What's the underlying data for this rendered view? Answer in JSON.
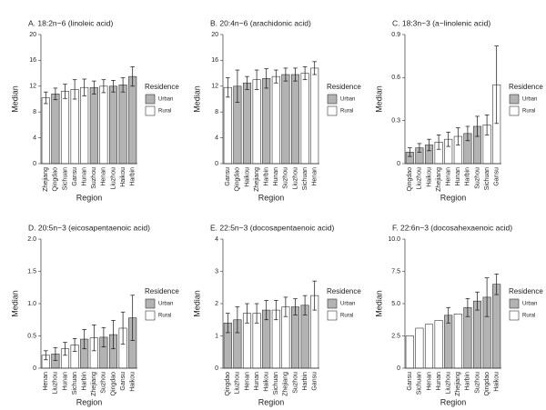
{
  "chart_data": [
    {
      "type": "bar",
      "title": "A. 18:2n−6 (linoleic acid)",
      "x_label": "Region",
      "y_label": "Median",
      "legend_title": "Residence",
      "categories": [
        "Zhejiang",
        "Qingdao",
        "Sichuan",
        "Gansu",
        "Hunan",
        "Suzhou",
        "Henan",
        "Liuzhou",
        "Haikou",
        "Harbin"
      ],
      "series": [
        {
          "name": "Urban",
          "color": "#b3b3b3",
          "values": [
            null,
            10.8,
            null,
            null,
            null,
            11.8,
            null,
            12.0,
            12.2,
            13.5
          ],
          "errors": [
            null,
            0.9,
            null,
            null,
            null,
            1.0,
            null,
            0.9,
            1.1,
            1.5
          ]
        },
        {
          "name": "Rural",
          "color": "#ffffff",
          "values": [
            10.2,
            null,
            11.2,
            11.5,
            11.8,
            null,
            12.0,
            null,
            null,
            null
          ],
          "errors": [
            0.9,
            null,
            1.1,
            1.5,
            1.3,
            null,
            1.0,
            null,
            null,
            null
          ]
        }
      ],
      "ylim": [
        0,
        20
      ],
      "yticks": [
        0,
        4,
        8,
        12,
        16,
        20
      ]
    },
    {
      "type": "bar",
      "title": "B. 20:4n−6 (arachidonic acid)",
      "x_label": "Region",
      "y_label": "Median",
      "legend_title": "Residence",
      "categories": [
        "Gansu",
        "Qingdao",
        "Haikou",
        "Zhejiang",
        "Harbin",
        "Hunan",
        "Suzhou",
        "Liuzhou",
        "Sichuan",
        "Henan"
      ],
      "series": [
        {
          "name": "Urban",
          "color": "#b3b3b3",
          "values": [
            null,
            12.0,
            12.5,
            null,
            13.2,
            null,
            13.8,
            13.8,
            null,
            null
          ],
          "errors": [
            null,
            2.5,
            1.0,
            null,
            1.5,
            null,
            1.0,
            1.0,
            null,
            null
          ]
        },
        {
          "name": "Rural",
          "color": "#ffffff",
          "values": [
            11.8,
            null,
            null,
            13.0,
            null,
            13.5,
            null,
            null,
            14.0,
            14.8
          ],
          "errors": [
            1.5,
            null,
            null,
            1.5,
            null,
            1.0,
            null,
            null,
            1.0,
            1.0
          ]
        }
      ],
      "ylim": [
        0,
        20
      ],
      "yticks": [
        0,
        4,
        8,
        12,
        16,
        20
      ]
    },
    {
      "type": "bar",
      "title": "C. 18:3n−3 (a−linolenic acid)",
      "x_label": "Region",
      "y_label": "Median",
      "legend_title": "Residence",
      "categories": [
        "Qingdao",
        "Liuzhou",
        "Haikou",
        "Zhejiang",
        "Henan",
        "Hunan",
        "Harbin",
        "Suzhou",
        "Sichuan",
        "Gansu"
      ],
      "series": [
        {
          "name": "Urban",
          "color": "#b3b3b3",
          "values": [
            0.08,
            0.11,
            0.13,
            null,
            null,
            null,
            0.21,
            0.26,
            null,
            null
          ],
          "errors": [
            0.03,
            0.03,
            0.04,
            null,
            null,
            null,
            0.05,
            0.07,
            null,
            null
          ]
        },
        {
          "name": "Rural",
          "color": "#ffffff",
          "values": [
            null,
            null,
            null,
            0.15,
            0.17,
            0.19,
            null,
            null,
            0.27,
            0.55
          ],
          "errors": [
            null,
            null,
            null,
            0.05,
            0.05,
            0.06,
            null,
            null,
            0.07,
            0.27
          ]
        }
      ],
      "ylim": [
        0,
        0.9
      ],
      "yticks": [
        0,
        0.3,
        0.6,
        0.9
      ]
    },
    {
      "type": "bar",
      "title": "D. 20:5n−3 (eicosapentaenoic acid)",
      "x_label": "Region",
      "y_label": "Median",
      "legend_title": "Residence",
      "categories": [
        "Henan",
        "Liuzhou",
        "Hunan",
        "Sichuan",
        "Harbin",
        "Zhejiang",
        "Suzhou",
        "Qingdao",
        "Gansu",
        "Haikou"
      ],
      "series": [
        {
          "name": "Urban",
          "color": "#b3b3b3",
          "values": [
            null,
            0.22,
            null,
            null,
            0.45,
            null,
            0.48,
            0.52,
            null,
            0.78
          ],
          "errors": [
            null,
            0.1,
            null,
            null,
            0.15,
            null,
            0.15,
            0.22,
            null,
            0.35
          ]
        },
        {
          "name": "Rural",
          "color": "#ffffff",
          "values": [
            0.2,
            null,
            0.3,
            0.36,
            null,
            0.47,
            null,
            null,
            0.62,
            null
          ],
          "errors": [
            0.07,
            null,
            0.1,
            0.1,
            null,
            0.2,
            null,
            null,
            0.25,
            null
          ]
        }
      ],
      "ylim": [
        0,
        2
      ],
      "yticks": [
        0,
        0.5,
        {
          "value": 1,
          "label": "1.0"
        },
        1.5,
        {
          "value": 2,
          "label": "2.0"
        }
      ]
    },
    {
      "type": "bar",
      "title": "E. 22:5n−3 (docosapentaenoic acid)",
      "x_label": "Region",
      "y_label": "Median",
      "legend_title": "Residence",
      "categories": [
        "Qingdao",
        "Liuzhou",
        "Henan",
        "Hunan",
        "Haikou",
        "Sichuan",
        "Zhejiang",
        "Suzhou",
        "Harbin",
        "Gansu"
      ],
      "series": [
        {
          "name": "Urban",
          "color": "#b3b3b3",
          "values": [
            1.4,
            1.5,
            null,
            null,
            1.8,
            null,
            null,
            1.9,
            1.95,
            null
          ],
          "errors": [
            0.3,
            0.4,
            null,
            null,
            0.3,
            null,
            null,
            0.25,
            0.3,
            null
          ]
        },
        {
          "name": "Rural",
          "color": "#ffffff",
          "values": [
            null,
            null,
            1.7,
            1.7,
            null,
            1.8,
            1.9,
            null,
            null,
            2.25
          ],
          "errors": [
            null,
            null,
            0.3,
            0.3,
            null,
            0.3,
            0.3,
            null,
            null,
            0.45
          ]
        }
      ],
      "ylim": [
        0,
        4
      ],
      "yticks": [
        0,
        1,
        2,
        3,
        4
      ]
    },
    {
      "type": "bar",
      "title": "F. 22:6n−3 (docosahexaenoic acid)",
      "x_label": "Region",
      "y_label": "Median",
      "legend_title": "Residence",
      "categories": [
        "Gansu",
        "Sichuan",
        "Henan",
        "Hunan",
        "Liuzhou",
        "Zhejiang",
        "Harbin",
        "Suzhou",
        "Qingdao",
        "Haikou"
      ],
      "series": [
        {
          "name": "Urban",
          "color": "#b3b3b3",
          "values": [
            null,
            null,
            null,
            null,
            4.1,
            null,
            4.7,
            5.2,
            5.5,
            6.5
          ],
          "errors": [
            null,
            null,
            null,
            null,
            0.6,
            null,
            0.7,
            0.7,
            1.5,
            0.8
          ]
        },
        {
          "name": "Rural",
          "color": "#ffffff",
          "values": [
            2.5,
            3.1,
            3.4,
            3.7,
            null,
            4.2,
            null,
            null,
            null,
            null
          ],
          "errors": [
            null,
            null,
            null,
            null,
            null,
            null,
            null,
            null,
            null,
            null
          ]
        }
      ],
      "ylim": [
        0,
        10
      ],
      "yticks": [
        0,
        2.5,
        {
          "value": 5,
          "label": "5.0"
        },
        7.5,
        {
          "value": 10,
          "label": "10.0"
        }
      ]
    }
  ]
}
